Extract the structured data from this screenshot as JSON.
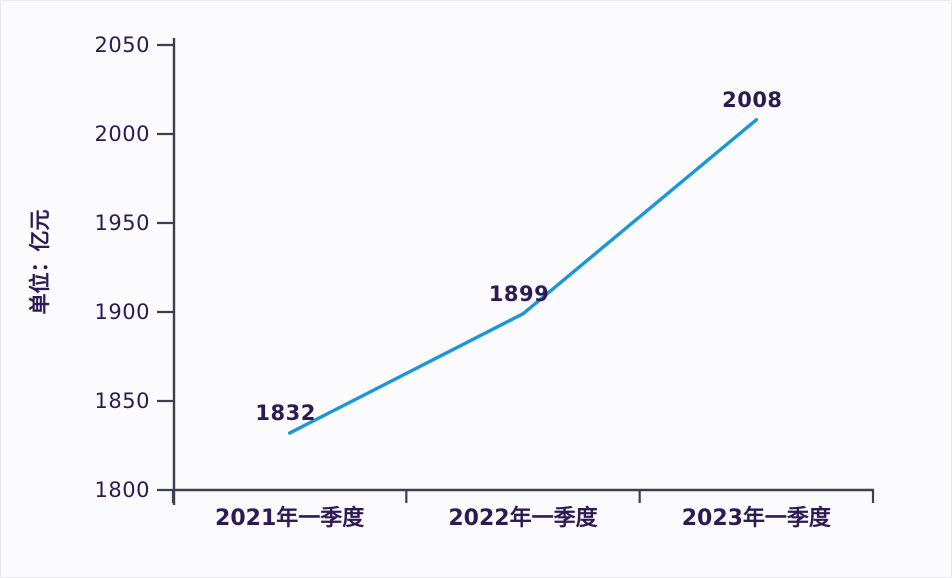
{
  "chart_data": {
    "type": "line",
    "title": "",
    "xlabel": "",
    "ylabel": "单位：亿元",
    "unit_label": "单位：亿元",
    "categories": [
      "2021年一季度",
      "2022年一季度",
      "2023年一季度"
    ],
    "values": [
      1832,
      1899,
      2008
    ],
    "data_labels": [
      "1832",
      "1899",
      "2008"
    ],
    "yticks": [
      1800,
      1850,
      1900,
      1950,
      2000,
      2050
    ],
    "ylim": [
      1800,
      2050
    ],
    "ytick_step": 50,
    "grid": false,
    "legend_position": "none",
    "colors": {
      "line": "#1b97d8",
      "text": "#2e1a52",
      "axis": "#3e3e52",
      "background": "#fbfbfd"
    }
  }
}
